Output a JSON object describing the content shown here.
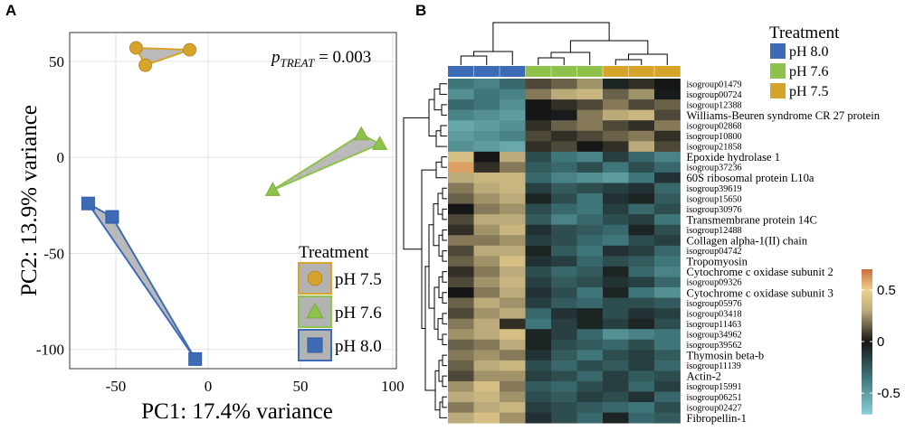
{
  "chart_data": [
    {
      "panel_label": "A",
      "type": "scatter",
      "xlabel": "PC1: 17.4% variance",
      "ylabel": "PC2: 13.9% variance",
      "xlim": [
        -75,
        102
      ],
      "ylim": [
        -110,
        65
      ],
      "x_ticks": [
        -50,
        0,
        50,
        100
      ],
      "x_tick_labels": [
        "-50",
        "0",
        "50",
        "100"
      ],
      "y_ticks": [
        50,
        0,
        -50,
        -100
      ],
      "y_tick_labels": [
        "50",
        "0",
        "-50",
        "-100"
      ],
      "grid": true,
      "annotation": {
        "p_prefix": "p",
        "subscript": "TREAT",
        "value_text": " = 0.003"
      },
      "legend": {
        "title": "Treatment",
        "position": "bottom-right"
      },
      "series": [
        {
          "name": "pH 7.5",
          "label": "pH 7.5",
          "marker": "circle",
          "color": "#d6a42a",
          "edge": "#b8892a",
          "points": [
            [
              -39,
              57
            ],
            [
              -10,
              56
            ],
            [
              -34,
              48
            ]
          ]
        },
        {
          "name": "pH 7.6",
          "label": "pH 7.6",
          "marker": "triangle",
          "color": "#8ec24a",
          "edge": "#7aad3c",
          "points": [
            [
              35,
              -17
            ],
            [
              83,
              12
            ],
            [
              93,
              7
            ]
          ]
        },
        {
          "name": "pH 8.0",
          "label": "pH 8.0",
          "marker": "square",
          "color": "#3e6bb5",
          "edge": "#2f5aa3",
          "points": [
            [
              -65,
              -24
            ],
            [
              -52,
              -31
            ],
            [
              -7,
              -105
            ]
          ]
        }
      ]
    },
    {
      "panel_label": "B",
      "type": "heatmap",
      "legend": {
        "title": "Treatment",
        "items": [
          {
            "label": "pH 8.0",
            "color": "#3e6bb5"
          },
          {
            "label": "pH 7.6",
            "color": "#8ec24a"
          },
          {
            "label": "pH 7.5",
            "color": "#d6a42a"
          }
        ]
      },
      "column_groups": [
        "pH 8.0",
        "pH 8.0",
        "pH 8.0",
        "pH 7.6",
        "pH 7.6",
        "pH 7.6",
        "pH 7.5",
        "pH 7.5",
        "pH 7.5"
      ],
      "colorbar": {
        "min": -0.7,
        "max": 0.7,
        "ticks": [
          0.5,
          0,
          -0.5
        ],
        "tick_labels": [
          "0.5",
          "0",
          "-0.5"
        ]
      },
      "rows": [
        "isogroup01479",
        "isogroup00724",
        "isogroup12388",
        "Williams-Beuren syndrome CR 27 protein",
        "isogroup02868",
        "isogroup10800",
        "isogroup21858",
        "Epoxide hydrolase 1",
        "isogroup37236",
        "60S ribosomal protein L10a",
        "isogroup39619",
        "isogroup15650",
        "isogroup30976",
        "Transmembrane protein 14C",
        "isogroup12488",
        "Collagen alpha-1(II) chain",
        "isogroup04742",
        "Tropomyosin",
        "Cytochrome c oxidase subunit 2",
        "isogroup09326",
        "Cytochrome c oxidase subunit 3",
        "isogroup05976",
        "isogroup03418",
        "isogroup11463",
        "isogroup34962",
        "isogroup39562",
        "Thymosin beta-b",
        "isogroup11139",
        "Actin-2",
        "isogroup15991",
        "isogroup06251",
        "isogroup02427",
        "Fibropellin-1"
      ],
      "row_is_large": [
        false,
        false,
        false,
        true,
        false,
        false,
        false,
        true,
        false,
        true,
        false,
        false,
        false,
        true,
        false,
        true,
        false,
        true,
        true,
        false,
        true,
        false,
        false,
        false,
        false,
        false,
        true,
        false,
        true,
        false,
        false,
        false,
        true
      ],
      "values": [
        [
          -0.35,
          -0.4,
          -0.3,
          0.1,
          0.15,
          0.25,
          -0.05,
          0.05,
          0.0
        ],
        [
          -0.45,
          -0.35,
          -0.4,
          0.2,
          0.3,
          0.35,
          0.15,
          0.25,
          -0.02
        ],
        [
          -0.3,
          -0.35,
          -0.45,
          0.0,
          0.05,
          0.1,
          0.2,
          0.1,
          0.15
        ],
        [
          -0.4,
          -0.45,
          -0.5,
          0.0,
          -0.02,
          0.2,
          0.3,
          0.35,
          0.1
        ],
        [
          -0.55,
          -0.5,
          -0.45,
          0.05,
          0.15,
          0.2,
          0.1,
          0.05,
          0.2
        ],
        [
          -0.5,
          -0.45,
          -0.4,
          0.1,
          0.05,
          0.1,
          0.15,
          0.2,
          0.05
        ],
        [
          -0.45,
          -0.5,
          -0.55,
          0.05,
          0.1,
          0.0,
          0.05,
          0.3,
          0.1
        ],
        [
          0.4,
          0.0,
          0.3,
          -0.2,
          -0.35,
          -0.4,
          -0.15,
          -0.3,
          -0.4
        ],
        [
          0.6,
          0.05,
          0.2,
          -0.25,
          -0.3,
          -0.2,
          -0.35,
          -0.2,
          -0.3
        ],
        [
          0.3,
          0.35,
          0.35,
          -0.3,
          -0.4,
          -0.45,
          -0.5,
          -0.35,
          -0.1
        ],
        [
          0.2,
          0.3,
          0.35,
          -0.15,
          -0.25,
          -0.2,
          -0.15,
          -0.1,
          -0.3
        ],
        [
          0.15,
          0.25,
          0.3,
          -0.05,
          -0.2,
          -0.35,
          -0.1,
          -0.05,
          -0.25
        ],
        [
          0.0,
          0.2,
          0.25,
          -0.2,
          -0.3,
          -0.35,
          -0.15,
          -0.3,
          -0.2
        ],
        [
          0.1,
          0.3,
          0.3,
          -0.25,
          -0.4,
          -0.3,
          -0.2,
          -0.15,
          -0.35
        ],
        [
          0.05,
          0.25,
          0.35,
          -0.1,
          -0.2,
          -0.25,
          -0.3,
          -0.05,
          -0.2
        ],
        [
          0.2,
          0.2,
          0.25,
          -0.15,
          -0.2,
          -0.3,
          -0.35,
          -0.2,
          -0.15
        ],
        [
          0.1,
          0.3,
          0.3,
          -0.05,
          -0.25,
          -0.35,
          -0.1,
          -0.15,
          -0.3
        ],
        [
          0.15,
          0.25,
          0.4,
          -0.1,
          -0.15,
          -0.3,
          -0.2,
          -0.25,
          -0.35
        ],
        [
          0.05,
          0.2,
          0.3,
          -0.2,
          -0.3,
          -0.25,
          -0.05,
          -0.3,
          -0.4
        ],
        [
          0.1,
          0.25,
          0.35,
          -0.15,
          -0.25,
          -0.2,
          -0.1,
          -0.15,
          -0.3
        ],
        [
          0.0,
          0.2,
          0.3,
          -0.1,
          -0.2,
          -0.35,
          -0.05,
          -0.35,
          -0.45
        ],
        [
          0.15,
          0.3,
          0.25,
          -0.15,
          -0.25,
          -0.3,
          -0.2,
          -0.2,
          -0.25
        ],
        [
          0.1,
          0.25,
          0.3,
          -0.3,
          -0.1,
          -0.05,
          -0.2,
          -0.1,
          -0.15
        ],
        [
          0.2,
          0.3,
          0.05,
          -0.35,
          -0.15,
          -0.05,
          -0.15,
          -0.05,
          -0.2
        ],
        [
          0.25,
          0.3,
          0.4,
          -0.05,
          -0.15,
          -0.3,
          -0.45,
          -0.4,
          -0.35
        ],
        [
          0.15,
          0.2,
          0.3,
          -0.05,
          -0.2,
          -0.25,
          -0.3,
          -0.2,
          -0.35
        ],
        [
          0.2,
          0.25,
          0.2,
          -0.1,
          -0.25,
          -0.35,
          -0.2,
          -0.15,
          -0.25
        ],
        [
          0.15,
          0.3,
          0.35,
          -0.2,
          -0.3,
          -0.2,
          -0.25,
          -0.15,
          -0.3
        ],
        [
          0.1,
          0.25,
          0.25,
          -0.15,
          -0.2,
          -0.3,
          -0.15,
          -0.25,
          -0.2
        ],
        [
          0.25,
          0.4,
          0.2,
          -0.25,
          -0.3,
          -0.2,
          -0.15,
          -0.3,
          -0.15
        ],
        [
          0.3,
          0.35,
          0.25,
          -0.2,
          -0.25,
          -0.15,
          -0.2,
          -0.1,
          -0.3
        ],
        [
          0.2,
          0.3,
          0.35,
          -0.15,
          -0.2,
          -0.25,
          -0.3,
          -0.35,
          -0.2
        ],
        [
          0.3,
          0.4,
          0.25,
          -0.1,
          -0.2,
          -0.3,
          -0.05,
          -0.3,
          -0.25
        ]
      ]
    }
  ]
}
